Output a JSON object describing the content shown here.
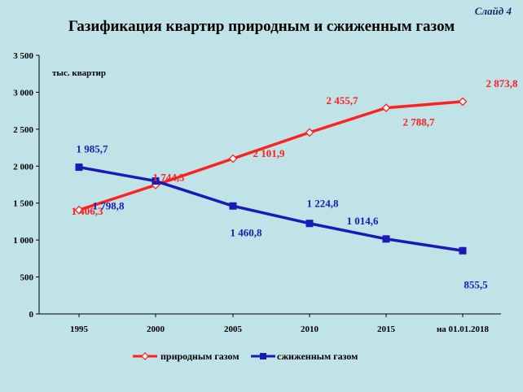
{
  "slide_label": "Слайд 4",
  "title": "Газификация квартир природным  и сжиженным газом",
  "chart_data": {
    "type": "line",
    "title": "Газификация квартир природным  и сжиженным газом",
    "ylabel": "тыс. квартир",
    "xlabel": "",
    "categories": [
      "1995",
      "2000",
      "2005",
      "2010",
      "2015",
      "на 01.01.2018"
    ],
    "ylim": [
      0,
      3500
    ],
    "yticks": [
      0,
      500,
      1000,
      1500,
      2000,
      2500,
      3000,
      3500
    ],
    "ytick_labels": [
      "0",
      "500",
      "1 000",
      "1 500",
      "2 000",
      "2 500",
      "3 000",
      "3 500"
    ],
    "grid": false,
    "legend_position": "bottom",
    "series": [
      {
        "name": "природным газом",
        "color": "#ff2020",
        "marker": "diamond-open",
        "values": [
          1406.3,
          1744.3,
          2101.9,
          2455.7,
          2788.7,
          2873.8
        ],
        "labels": [
          "1 406,3",
          "1 744,3",
          "2 101,9",
          "2 455,7",
          "2 788,7",
          "2 873,8"
        ]
      },
      {
        "name": "сжиженным газом",
        "color": "#1a1ab8",
        "marker": "square",
        "values": [
          1985.7,
          1798.8,
          1460.8,
          1224.8,
          1014.6,
          855.5
        ],
        "labels": [
          "1 985,7",
          "1 798,8",
          "1 460,8",
          "1 224,8",
          "1 014,6",
          "855,5"
        ]
      }
    ]
  }
}
